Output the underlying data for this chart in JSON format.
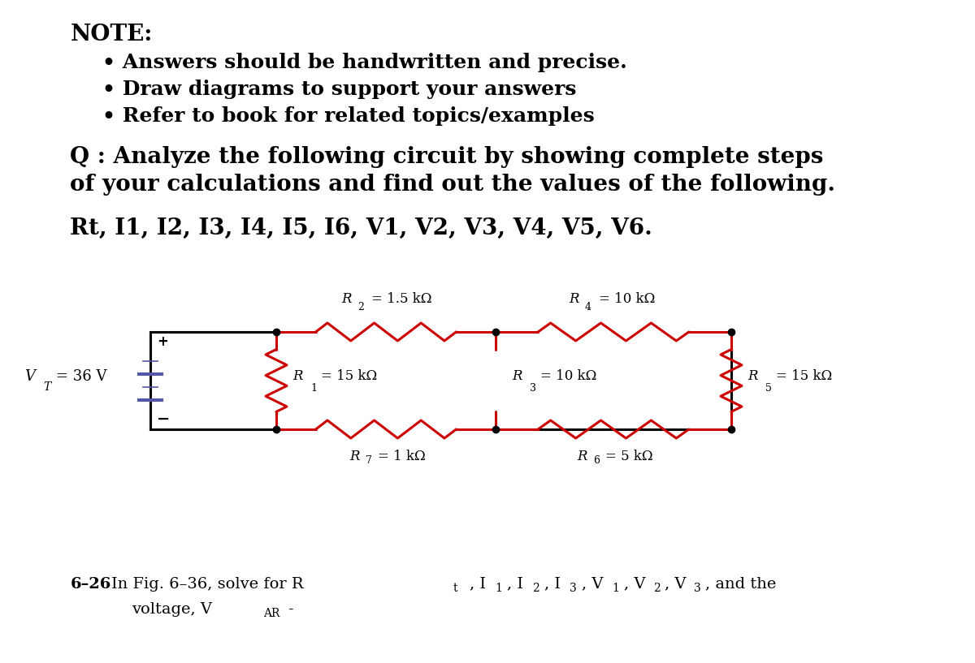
{
  "bg_color": "#ffffff",
  "text_color": "#000000",
  "circuit_color": "#cc0000",
  "wire_color": "#000000",
  "battery_color": "#5555aa",
  "note_title": "NOTE:",
  "bullets": [
    "Answers should be handwritten and precise.",
    "Draw diagrams to support your answers",
    "Refer to book for related topics/examples"
  ],
  "q_line1": "Q : Analyze the following circuit by showing complete steps",
  "q_line2": "of your calculations and find out the values of the following.",
  "find_line": "Rt, I1, I2, I3, I4, I5, I6, V1, V2, V3, V4, V5, V6.",
  "vt_text": "V",
  "vt_sub": "T",
  "vt_val": "= 36 V",
  "r_labels": {
    "R2": "= 1.5 kΩ",
    "R4": "= 10 kΩ",
    "R1": "= 15 kΩ",
    "R3": "= 10 kΩ",
    "R5": "= 15 kΩ",
    "R7": "= 1 kΩ",
    "R6": "= 5 kΩ"
  },
  "bottom_line1": "6–26 In Fig. 6–36, solve for R",
  "bottom_line2": "voltage, V",
  "figw": 12.0,
  "figh": 8.17,
  "dpi": 100
}
